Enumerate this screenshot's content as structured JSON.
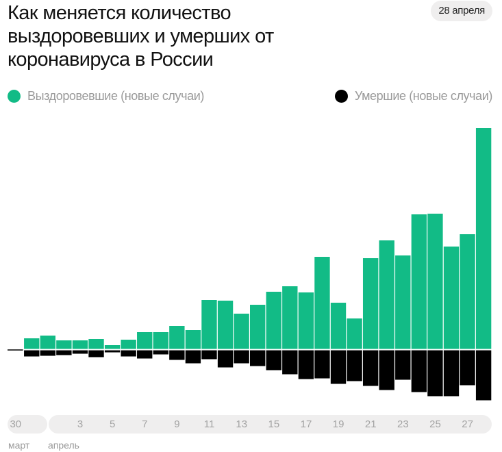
{
  "header": {
    "title": "Как меняется количество выздоровевших и умерших от коронавируса в России",
    "date": "28 апреля"
  },
  "chart_data": {
    "type": "bar",
    "title": "Как меняется количество выздоровевших и умерших от коронавируса в России",
    "note": "relative values (no value axis shown)",
    "categories": [
      "30 мар",
      "31 мар",
      "1 апр",
      "2 апр",
      "3 апр",
      "4 апр",
      "5 апр",
      "6 апр",
      "7 апр",
      "8 апр",
      "9 апр",
      "10 апр",
      "11 апр",
      "12 апр",
      "13 апр",
      "14 апр",
      "15 апр",
      "16 апр",
      "17 апр",
      "18 апр",
      "19 апр",
      "20 апр",
      "21 апр",
      "22 апр",
      "23 апр",
      "24 апр",
      "25 апр",
      "26 апр",
      "27 апр",
      "28 апр"
    ],
    "series": [
      {
        "name": "Выздоровевшие (новые случаи)",
        "color": "#12bb86",
        "direction": "up",
        "values": [
          0,
          16,
          20,
          13,
          13,
          15,
          6,
          14,
          25,
          25,
          34,
          28,
          72,
          71,
          52,
          65,
          84,
          92,
          83,
          135,
          68,
          45,
          133,
          159,
          137,
          197,
          198,
          150,
          168,
          323
        ]
      },
      {
        "name": "Умершие (новые случаи)",
        "color": "#000000",
        "direction": "down",
        "values": [
          0,
          9,
          8,
          7,
          5,
          10,
          3,
          9,
          12,
          6,
          14,
          19,
          13,
          25,
          19,
          23,
          29,
          35,
          42,
          41,
          49,
          45,
          52,
          58,
          43,
          61,
          67,
          67,
          51,
          73
        ]
      }
    ],
    "x_ticks": [
      {
        "index": 0,
        "label": "30"
      },
      {
        "index": 4,
        "label": "3"
      },
      {
        "index": 6,
        "label": "5"
      },
      {
        "index": 8,
        "label": "7"
      },
      {
        "index": 10,
        "label": "9"
      },
      {
        "index": 12,
        "label": "11"
      },
      {
        "index": 14,
        "label": "13"
      },
      {
        "index": 16,
        "label": "15"
      },
      {
        "index": 18,
        "label": "17"
      },
      {
        "index": 20,
        "label": "19"
      },
      {
        "index": 22,
        "label": "21"
      },
      {
        "index": 24,
        "label": "23"
      },
      {
        "index": 26,
        "label": "25"
      },
      {
        "index": 28,
        "label": "27"
      }
    ],
    "months": [
      "март",
      "апрель"
    ],
    "legend_placement": "top",
    "grid": false
  }
}
